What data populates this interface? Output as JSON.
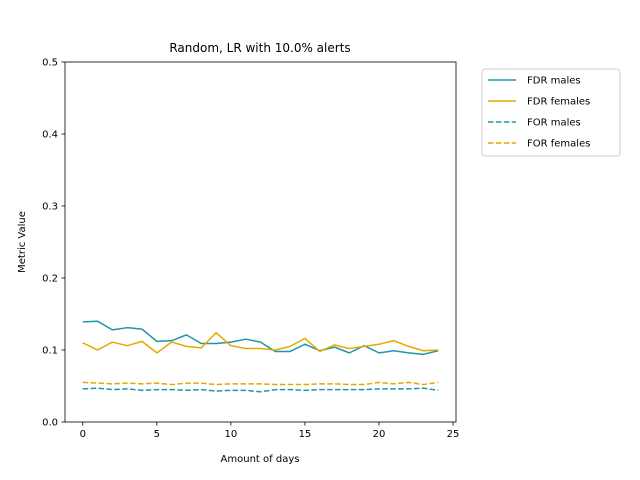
{
  "chart_data": {
    "type": "line",
    "title": "Random, LR with 10.0% alerts",
    "xlabel": "Amount of days",
    "ylabel": "Metric Value",
    "xlim": [
      -1.2,
      25.2
    ],
    "ylim": [
      0,
      0.5
    ],
    "xticks": [
      0,
      5,
      10,
      15,
      20,
      25
    ],
    "yticks": [
      0.0,
      0.1,
      0.2,
      0.3,
      0.4,
      0.5
    ],
    "xtick_labels": [
      "0",
      "5",
      "10",
      "15",
      "20",
      "25"
    ],
    "ytick_labels": [
      "0.0",
      "0.1",
      "0.2",
      "0.3",
      "0.4",
      "0.5"
    ],
    "legend_position": "outside-right-top",
    "grid": false,
    "x": [
      0,
      1,
      2,
      3,
      4,
      5,
      6,
      7,
      8,
      9,
      10,
      11,
      12,
      13,
      14,
      15,
      16,
      17,
      18,
      19,
      20,
      21,
      22,
      23,
      24
    ],
    "series": [
      {
        "name": "FDR males",
        "color": "#2196a6",
        "dash": "solid",
        "values": [
          0.139,
          0.14,
          0.128,
          0.131,
          0.129,
          0.112,
          0.113,
          0.121,
          0.109,
          0.109,
          0.111,
          0.115,
          0.111,
          0.098,
          0.098,
          0.108,
          0.099,
          0.104,
          0.096,
          0.106,
          0.096,
          0.099,
          0.096,
          0.094,
          0.099
        ]
      },
      {
        "name": "FDR females",
        "color": "#e6a800",
        "dash": "solid",
        "values": [
          0.11,
          0.1,
          0.111,
          0.106,
          0.112,
          0.096,
          0.111,
          0.105,
          0.103,
          0.124,
          0.106,
          0.102,
          0.102,
          0.1,
          0.105,
          0.116,
          0.098,
          0.107,
          0.102,
          0.105,
          0.108,
          0.113,
          0.105,
          0.099,
          0.1
        ]
      },
      {
        "name": "FOR males",
        "color": "#2196a6",
        "dash": "dashed",
        "values": [
          0.046,
          0.047,
          0.045,
          0.046,
          0.044,
          0.045,
          0.045,
          0.044,
          0.045,
          0.043,
          0.044,
          0.044,
          0.042,
          0.045,
          0.045,
          0.044,
          0.045,
          0.045,
          0.045,
          0.045,
          0.046,
          0.046,
          0.046,
          0.047,
          0.044
        ]
      },
      {
        "name": "FOR females",
        "color": "#e6a800",
        "dash": "dashed",
        "values": [
          0.055,
          0.054,
          0.053,
          0.054,
          0.053,
          0.054,
          0.052,
          0.054,
          0.054,
          0.052,
          0.053,
          0.053,
          0.053,
          0.052,
          0.052,
          0.052,
          0.053,
          0.053,
          0.052,
          0.052,
          0.055,
          0.053,
          0.055,
          0.052,
          0.055
        ]
      }
    ]
  }
}
